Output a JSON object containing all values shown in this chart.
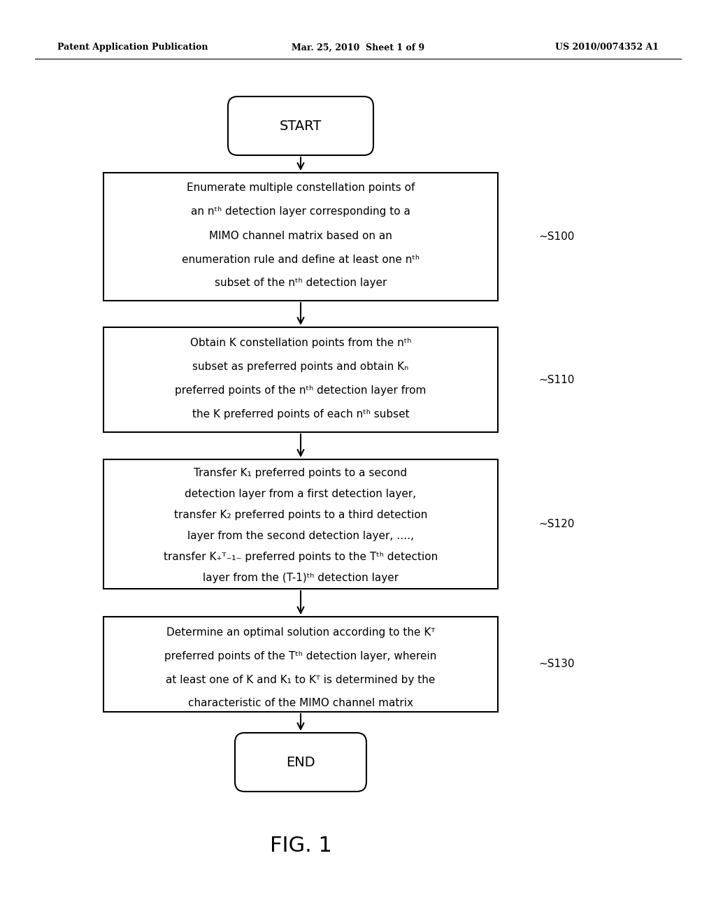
{
  "background_color": "#ffffff",
  "header_left": "Patent Application Publication",
  "header_center": "Mar. 25, 2010  Sheet 1 of 9",
  "header_right": "US 2010/0074352 A1",
  "figure_label": "FIG. 1",
  "start_text": "START",
  "end_text": "END",
  "s100_lines": [
    "Enumerate multiple constellation points of",
    "an nᵗʰ detection layer corresponding to a",
    "MIMO channel matrix based on an",
    "enumeration rule and define at least one nᵗʰ",
    "subset of the nᵗʰ detection layer"
  ],
  "s110_lines": [
    "Obtain K constellation points from the nᵗʰ",
    "subset as preferred points and obtain Kₙ",
    "preferred points of the nᵗʰ detection layer from",
    "the K preferred points of each nᵗʰ subset"
  ],
  "s120_lines": [
    "Transfer K₁ preferred points to a second",
    "detection layer from a first detection layer,",
    "transfer K₂ preferred points to a third detection",
    "layer from the second detection layer, ….,",
    "transfer K₊ᵀ₋₁₋ preferred points to the Tᵗʰ detection",
    "layer from the (T-1)ᵗʰ detection layer"
  ],
  "s130_lines": [
    "Determine an optimal solution according to the Kᵀ",
    "preferred points of the Tᵗʰ detection layer, wherein",
    "at least one of K and K₁ to Kᵀ is determined by the",
    "characteristic of the MIMO channel matrix"
  ],
  "s100_label": "S100",
  "s110_label": "S110",
  "s120_label": "S120",
  "s130_label": "S130"
}
